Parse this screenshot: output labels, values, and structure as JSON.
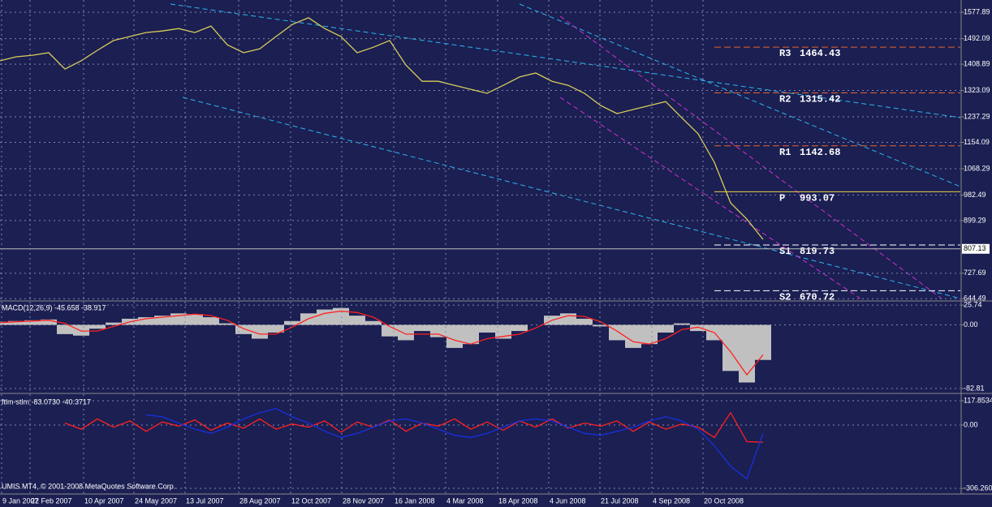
{
  "chart_data": [
    {
      "type": "line",
      "xlim": [
        0,
        59.15
      ],
      "ylim": [
        640,
        1610
      ],
      "yticks": [
        1577.89,
        1492.09,
        1408.89,
        1323.09,
        1237.29,
        1154.09,
        1068.29,
        982.49,
        899.29,
        727.69,
        644.49
      ],
      "grid": true,
      "current_price": 807.13,
      "levels": [
        {
          "label": "R3",
          "value": 1464.43,
          "color": "#e8642a"
        },
        {
          "label": "R2",
          "value": 1315.42,
          "color": "#e8642a"
        },
        {
          "label": "R1",
          "value": 1142.68,
          "color": "#e8642a"
        },
        {
          "label": "P",
          "value": 993.07,
          "color": "#e8d24a"
        },
        {
          "label": "S1",
          "value": 819.73,
          "color": "#ffffff"
        },
        {
          "label": "S2",
          "value": 670.72,
          "color": "#ffffff"
        }
      ],
      "series": [
        {
          "color": "#d8cc5a",
          "values": [
            1420,
            1433,
            1438,
            1446,
            1393,
            1420,
            1454,
            1486,
            1499,
            1512,
            1517,
            1525,
            1512,
            1533,
            1472,
            1446,
            1459,
            1499,
            1538,
            1560,
            1525,
            1499,
            1446,
            1464,
            1486,
            1406,
            1353,
            1353,
            1340,
            1327,
            1314,
            1340,
            1367,
            1380,
            1353,
            1340,
            1314,
            1274,
            1248,
            1261,
            1274,
            1287,
            1234,
            1182,
            1089,
            957,
            904,
            838
          ]
        }
      ]
    },
    {
      "type": "bar",
      "title": "MACD(12,26,9) -45.658 -38.917",
      "xlim": [
        0,
        59.15
      ],
      "ylim": [
        -88.2,
        30.1
      ],
      "yticks": [
        25.74,
        {
          "value": 0,
          "label": "0.00"
        },
        -82.81
      ],
      "grid": true,
      "series": [
        {
          "style": "bar",
          "color": "#c0c0c0",
          "values": [
            4,
            5,
            6,
            7,
            -12,
            -14,
            -5,
            3,
            8,
            10,
            12,
            15,
            14,
            10,
            2,
            -12,
            -18,
            -10,
            5,
            15,
            20,
            22,
            12,
            5,
            -15,
            -20,
            -8,
            -16,
            -30,
            -25,
            -10,
            -18,
            -8,
            0,
            12,
            15,
            8,
            -2,
            -20,
            -30,
            -25,
            -10,
            2,
            -8,
            -20,
            -60,
            -75,
            -45.658
          ]
        },
        {
          "style": "line",
          "color": "#ff2020",
          "values": [
            3,
            4,
            5,
            6,
            2,
            -8,
            -8,
            -2,
            4,
            8,
            10,
            12,
            14,
            12,
            6,
            -5,
            -12,
            -12,
            -3,
            8,
            15,
            18,
            16,
            10,
            -2,
            -12,
            -12,
            -12,
            -20,
            -25,
            -18,
            -15,
            -12,
            -4,
            6,
            12,
            11,
            4,
            -8,
            -22,
            -25,
            -18,
            -6,
            -3,
            -10,
            -35,
            -65,
            -38.917
          ]
        }
      ]
    },
    {
      "type": "line",
      "title": "ftlm-stlm -83.0730 -40.3717",
      "xlim": [
        0,
        59.15
      ],
      "ylim": [
        -329.8,
        141.4
      ],
      "yticks": [
        117.8534,
        {
          "value": 0,
          "label": "0.00"
        },
        {
          "value": -306.26,
          "label": "-306.260"
        }
      ],
      "grid": true,
      "xticks": [
        {
          "value": 0.1,
          "label": "9 Jan 2007"
        },
        {
          "value": 1.85,
          "label": "22 Feb 2007"
        },
        {
          "value": 5.15,
          "label": "10 Apr 2007"
        },
        {
          "value": 8.25,
          "label": "24 May 2007"
        },
        {
          "value": 11.4,
          "label": "13 Jul 2007"
        },
        {
          "value": 14.7,
          "label": "28 Aug 2007"
        },
        {
          "value": 17.9,
          "label": "12 Oct 2007"
        },
        {
          "value": 21.05,
          "label": "28 Nov 2007"
        },
        {
          "value": 24.25,
          "label": "16 Jan 2008"
        },
        {
          "value": 27.45,
          "label": "4 Mar 2008"
        },
        {
          "value": 30.65,
          "label": "18 Apr 2008"
        },
        {
          "value": 33.8,
          "label": "4 Jun 2008"
        },
        {
          "value": 36.95,
          "label": "21 Jul 2008"
        },
        {
          "value": 40.15,
          "label": "4 Sep 2008"
        },
        {
          "value": 43.3,
          "label": "20 Oct 2008"
        }
      ],
      "footer": "UMIS MT4, © 2001-2008 MetaQuotes Software Corp.",
      "series": [
        {
          "color": "#ff2020",
          "values": [
            null,
            null,
            null,
            null,
            10,
            -20,
            30,
            -10,
            20,
            -30,
            15,
            -5,
            25,
            -25,
            10,
            -15,
            30,
            -20,
            5,
            -10,
            20,
            -35,
            15,
            -10,
            25,
            -30,
            10,
            -5,
            30,
            -20,
            15,
            -25,
            20,
            -10,
            30,
            -15,
            10,
            -5,
            20,
            -30,
            15,
            -20,
            5,
            -10,
            -60,
            60,
            -80,
            -83.073
          ]
        },
        {
          "color": "#1830e0",
          "values": [
            null,
            null,
            null,
            null,
            null,
            null,
            null,
            null,
            null,
            50,
            40,
            10,
            -20,
            -40,
            -10,
            30,
            60,
            80,
            40,
            10,
            -30,
            -60,
            -40,
            -10,
            20,
            30,
            10,
            -20,
            -50,
            -60,
            -40,
            -10,
            20,
            30,
            20,
            -10,
            -40,
            -50,
            -30,
            -10,
            20,
            40,
            20,
            -20,
            -100,
            -200,
            -260,
            -40.3717
          ]
        }
      ]
    }
  ]
}
